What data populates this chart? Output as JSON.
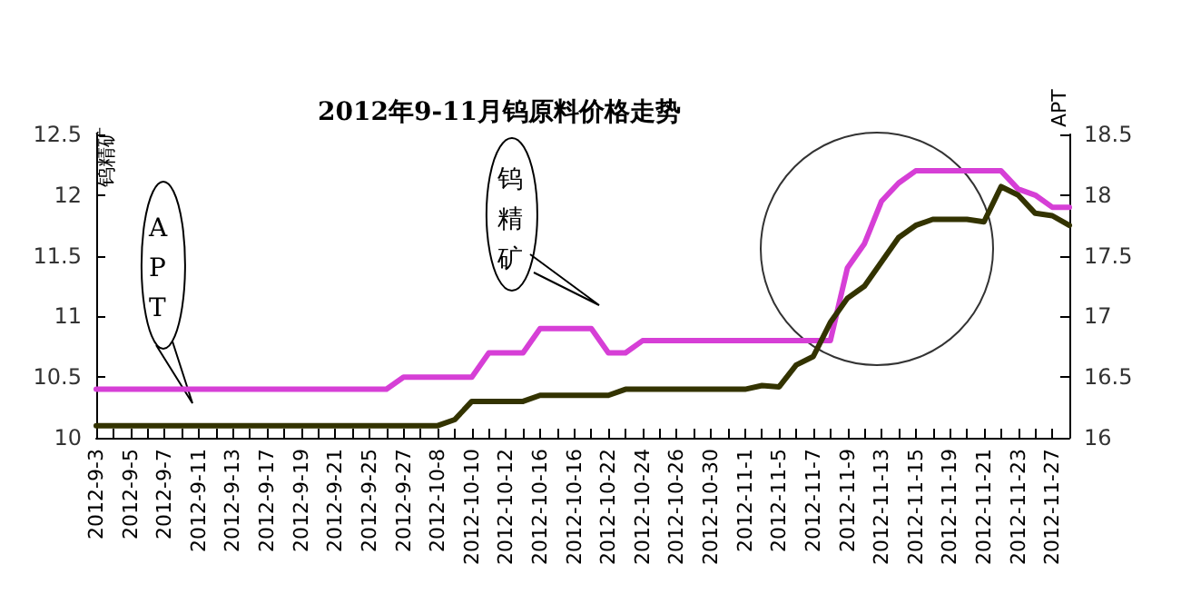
{
  "chart_data": {
    "type": "line",
    "title": "2012年9-11月钨原料价格走势",
    "ylabel": "钨精矿",
    "y2label": "APT",
    "annotations": [
      "APT",
      "钨精矿"
    ],
    "categories": [
      "2012-9-3",
      null,
      "2012-9-5",
      null,
      "2012-9-7",
      null,
      "2012-9-11",
      null,
      "2012-9-13",
      null,
      "2012-9-17",
      null,
      "2012-9-19",
      null,
      "2012-9-21",
      null,
      "2012-9-25",
      null,
      "2012-9-27",
      null,
      "2012-10-8",
      null,
      "2012-10-10",
      null,
      "2012-10-12",
      null,
      "2012-10-16",
      null,
      "2012-10-16",
      null,
      "2012-10-22",
      null,
      "2012-10-24",
      null,
      "2012-10-26",
      null,
      "2012-10-30",
      null,
      "2012-11-1",
      null,
      "2012-11-5",
      null,
      "2012-11-7",
      null,
      "2012-11-9",
      null,
      "2012-11-13",
      null,
      "2012-11-15",
      null,
      "2012-11-19",
      null,
      "2012-11-21",
      null,
      "2012-11-23",
      null,
      "2012-11-27",
      null
    ],
    "series": [
      {
        "color": "#d63fd6",
        "values": [
          10.4,
          10.4,
          10.4,
          10.4,
          10.4,
          10.4,
          10.4,
          10.4,
          10.4,
          10.4,
          10.4,
          10.4,
          10.4,
          10.4,
          10.4,
          10.4,
          10.4,
          10.4,
          10.5,
          10.5,
          10.5,
          10.5,
          10.5,
          10.7,
          10.7,
          10.7,
          10.9,
          10.9,
          10.9,
          10.9,
          10.7,
          10.7,
          10.8,
          10.8,
          10.8,
          10.8,
          10.8,
          10.8,
          10.8,
          10.8,
          10.8,
          10.8,
          10.8,
          10.8,
          11.4,
          11.6,
          11.95,
          12.1,
          12.2,
          12.2,
          12.2,
          12.2,
          12.2,
          12.2,
          12.05,
          12.0,
          11.9,
          11.9
        ]
      },
      {
        "color": "#333300",
        "axis": "y2",
        "values": [
          16.1,
          16.1,
          16.1,
          16.1,
          16.1,
          16.1,
          16.1,
          16.1,
          16.1,
          16.1,
          16.1,
          16.1,
          16.1,
          16.1,
          16.1,
          16.1,
          16.1,
          16.1,
          16.1,
          16.1,
          16.1,
          16.15,
          16.3,
          16.3,
          16.3,
          16.3,
          16.35,
          16.35,
          16.35,
          16.35,
          16.35,
          16.4,
          16.4,
          16.4,
          16.4,
          16.4,
          16.4,
          16.4,
          16.4,
          16.43,
          16.42,
          16.6,
          16.67,
          16.95,
          17.15,
          17.25,
          17.45,
          17.65,
          17.75,
          17.8,
          17.8,
          17.8,
          17.78,
          18.07,
          18.0,
          17.85,
          17.83,
          17.75
        ]
      }
    ],
    "ylim": [
      10,
      12.5
    ],
    "yticks": [
      10,
      10.5,
      11,
      11.5,
      12,
      12.5
    ],
    "y2lim": [
      16,
      18.5
    ],
    "y2ticks": [
      16,
      16.5,
      17,
      17.5,
      18,
      18.5
    ],
    "grid": false,
    "marker": "none",
    "line_style": "solid"
  }
}
